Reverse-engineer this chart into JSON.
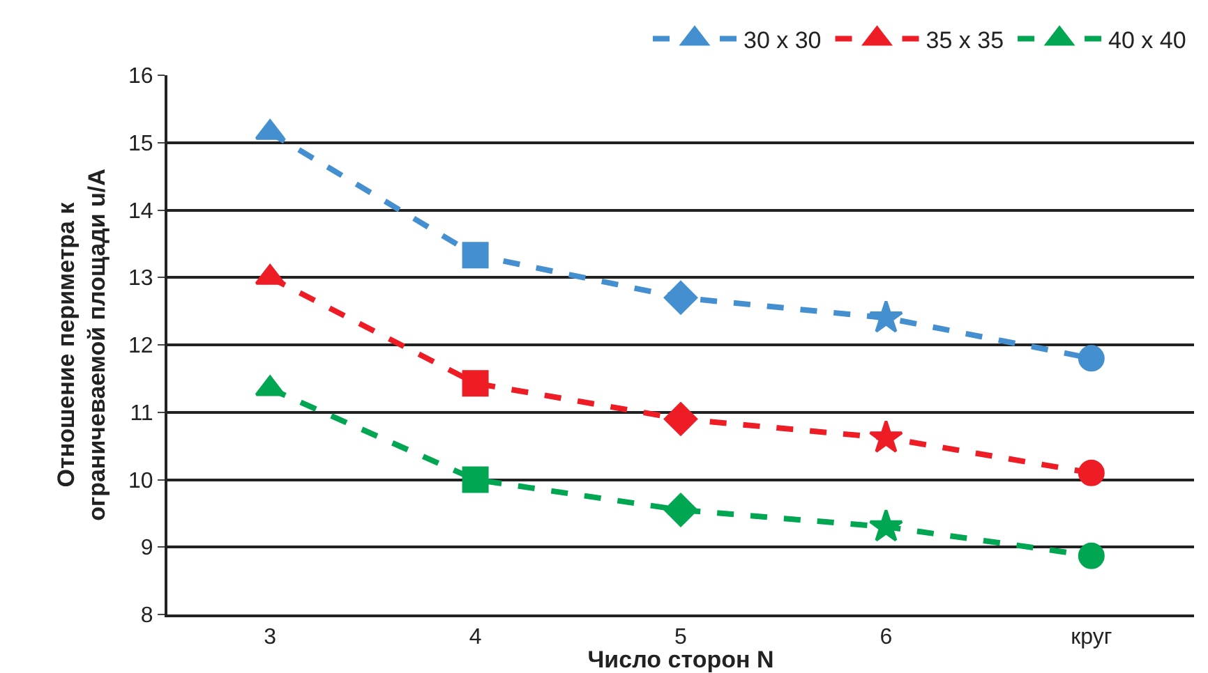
{
  "chart_data": {
    "type": "line",
    "xlabel": "Число сторон N",
    "ylabel": "Отношение периметра к\nограничеваемой площади u/A",
    "categories": [
      "3",
      "4",
      "5",
      "6",
      "круг"
    ],
    "series": [
      {
        "name": "30 x 30",
        "color": "#448fcf",
        "values": [
          15.15,
          13.33,
          12.7,
          12.4,
          11.8
        ]
      },
      {
        "name": "35 x 35",
        "color": "#ee1c24",
        "values": [
          13.0,
          11.43,
          10.9,
          10.62,
          10.1
        ]
      },
      {
        "name": "40 x 40",
        "color": "#00a651",
        "values": [
          11.35,
          10.0,
          9.55,
          9.3,
          8.87
        ]
      }
    ],
    "ylim": [
      8,
      16
    ],
    "yticks": [
      8,
      9,
      10,
      11,
      12,
      13,
      14,
      15,
      16
    ],
    "grid": "y",
    "legend": "top right",
    "line_style": "dashed",
    "marker": [
      "triangle",
      "square",
      "diamond",
      "star",
      "circle"
    ]
  }
}
